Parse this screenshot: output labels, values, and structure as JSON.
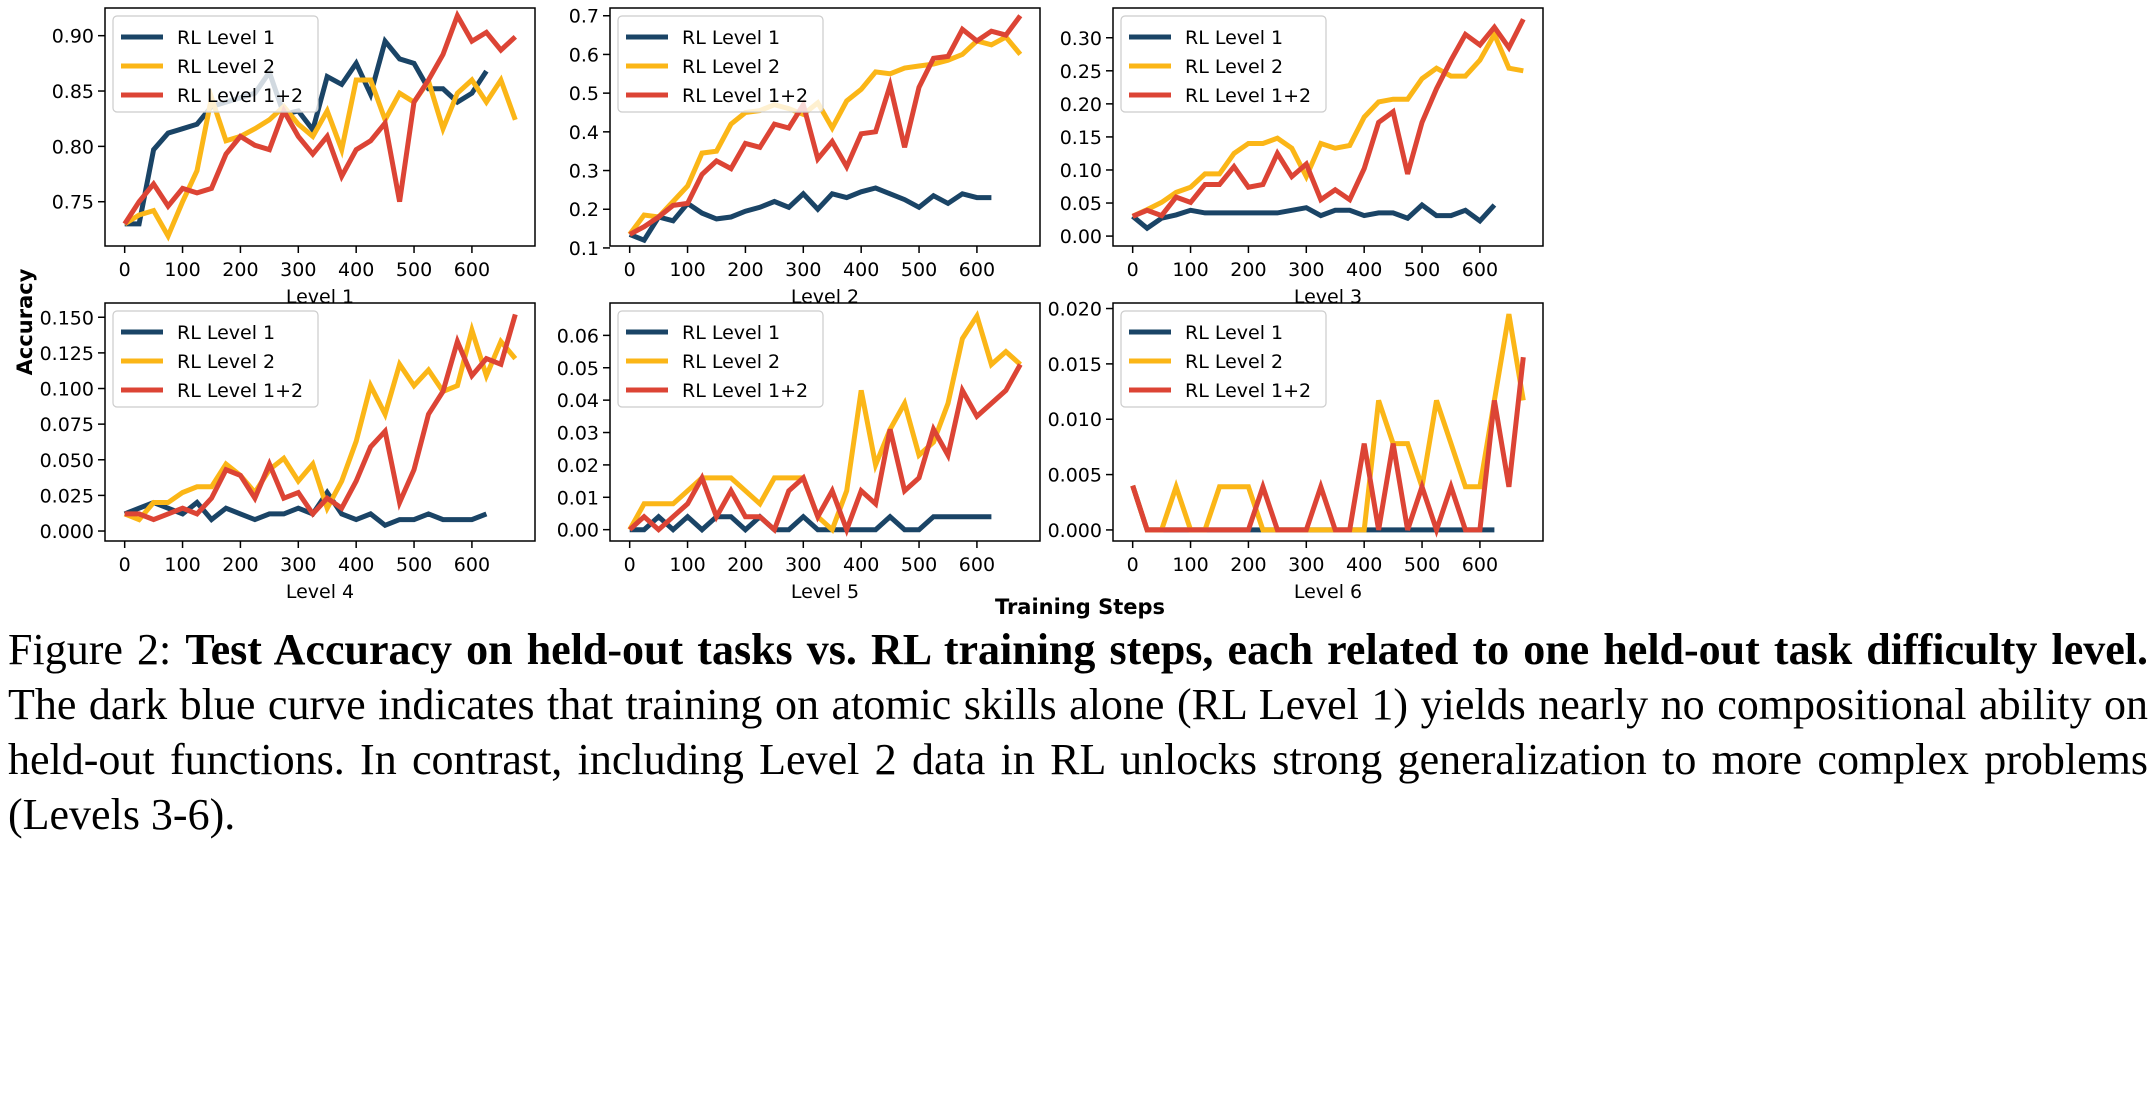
{
  "figure": {
    "ylabel": "Accuracy",
    "xlabel": "Training Steps"
  },
  "caption": {
    "label": "Figure 2: ",
    "bold": "Test Accuracy on held-out tasks vs. RL training steps, each related to one held-out task difficulty level.",
    "text": " The dark blue curve indicates that training on atomic skills alone (RL Level 1) yields nearly no compositional ability on held-out functions. In contrast, including Level 2 data in RL unlocks strong generalization to more complex problems (Levels 3-6)."
  },
  "colors": {
    "RL Level 1": "#1a4466",
    "RL Level 2": "#fbb617",
    "RL Level 1+2": "#dc4435"
  },
  "chart_data": [
    {
      "type": "line",
      "title": "",
      "xlabel": "Level 1",
      "ylabel": "Accuracy",
      "xlim": [
        -34,
        709
      ],
      "ylim": [
        0.71,
        0.925
      ],
      "xticks": [
        0,
        100,
        200,
        300,
        400,
        500,
        600
      ],
      "yticks": [
        "0.75",
        "0.80",
        "0.85",
        "0.90"
      ],
      "x_step": 25,
      "legend": "top-left",
      "series": [
        {
          "name": "RL Level 1",
          "values": [
            0.73,
            0.73,
            0.797,
            0.812,
            0.816,
            0.82,
            0.836,
            0.84,
            0.844,
            0.848,
            0.867,
            0.829,
            0.832,
            0.815,
            0.863,
            0.856,
            0.875,
            0.847,
            0.895,
            0.879,
            0.875,
            0.852,
            0.852,
            0.84,
            0.848,
            0.868
          ]
        },
        {
          "name": "RL Level 2",
          "values": [
            0.73,
            0.738,
            0.742,
            0.719,
            0.75,
            0.778,
            0.844,
            0.805,
            0.809,
            0.816,
            0.824,
            0.836,
            0.82,
            0.809,
            0.832,
            0.797,
            0.86,
            0.86,
            0.824,
            0.848,
            0.84,
            0.859,
            0.816,
            0.848,
            0.86,
            0.84,
            0.86,
            0.824
          ]
        },
        {
          "name": "RL Level 1+2",
          "values": [
            0.73,
            0.75,
            0.766,
            0.746,
            0.762,
            0.758,
            0.762,
            0.793,
            0.809,
            0.801,
            0.797,
            0.832,
            0.809,
            0.793,
            0.809,
            0.773,
            0.797,
            0.805,
            0.821,
            0.75,
            0.84,
            0.86,
            0.883,
            0.918,
            0.895,
            0.903,
            0.887,
            0.899
          ]
        }
      ]
    },
    {
      "type": "line",
      "title": "",
      "xlabel": "Level 2",
      "ylabel": "Accuracy",
      "xlim": [
        -34,
        709
      ],
      "ylim": [
        0.105,
        0.72
      ],
      "xticks": [
        0,
        100,
        200,
        300,
        400,
        500,
        600
      ],
      "yticks": [
        "0.1",
        "0.2",
        "0.3",
        "0.4",
        "0.5",
        "0.6",
        "0.7"
      ],
      "x_step": 25,
      "legend": "top-left",
      "series": [
        {
          "name": "RL Level 1",
          "values": [
            0.135,
            0.12,
            0.18,
            0.17,
            0.215,
            0.19,
            0.175,
            0.18,
            0.195,
            0.205,
            0.22,
            0.205,
            0.24,
            0.2,
            0.24,
            0.23,
            0.245,
            0.255,
            0.24,
            0.225,
            0.205,
            0.235,
            0.215,
            0.24,
            0.23,
            0.23
          ]
        },
        {
          "name": "RL Level 2",
          "values": [
            0.135,
            0.185,
            0.18,
            0.22,
            0.26,
            0.345,
            0.35,
            0.42,
            0.45,
            0.455,
            0.47,
            0.46,
            0.445,
            0.475,
            0.41,
            0.48,
            0.51,
            0.555,
            0.55,
            0.565,
            0.57,
            0.575,
            0.585,
            0.6,
            0.635,
            0.625,
            0.645,
            0.6
          ]
        },
        {
          "name": "RL Level 1+2",
          "values": [
            0.135,
            0.155,
            0.18,
            0.21,
            0.215,
            0.29,
            0.325,
            0.305,
            0.37,
            0.36,
            0.42,
            0.41,
            0.47,
            0.33,
            0.375,
            0.31,
            0.395,
            0.4,
            0.52,
            0.36,
            0.515,
            0.59,
            0.595,
            0.665,
            0.635,
            0.66,
            0.65,
            0.7
          ]
        }
      ]
    },
    {
      "type": "line",
      "title": "",
      "xlabel": "Level 3",
      "ylabel": "Accuracy",
      "xlim": [
        -34,
        709
      ],
      "ylim": [
        -0.015,
        0.345
      ],
      "xticks": [
        0,
        100,
        200,
        300,
        400,
        500,
        600
      ],
      "yticks": [
        "0.00",
        "0.05",
        "0.10",
        "0.15",
        "0.20",
        "0.25",
        "0.30"
      ],
      "x_step": 25,
      "legend": "top-left",
      "series": [
        {
          "name": "RL Level 1",
          "values": [
            0.03,
            0.012,
            0.027,
            0.032,
            0.039,
            0.035,
            0.035,
            0.035,
            0.035,
            0.035,
            0.035,
            0.039,
            0.043,
            0.031,
            0.039,
            0.039,
            0.031,
            0.035,
            0.035,
            0.027,
            0.047,
            0.031,
            0.031,
            0.039,
            0.023,
            0.047
          ]
        },
        {
          "name": "RL Level 2",
          "values": [
            0.03,
            0.04,
            0.051,
            0.066,
            0.074,
            0.094,
            0.094,
            0.125,
            0.14,
            0.14,
            0.148,
            0.133,
            0.09,
            0.14,
            0.133,
            0.137,
            0.18,
            0.203,
            0.207,
            0.207,
            0.238,
            0.254,
            0.242,
            0.242,
            0.266,
            0.305,
            0.254,
            0.25
          ]
        },
        {
          "name": "RL Level 1+2",
          "values": [
            0.03,
            0.039,
            0.031,
            0.059,
            0.051,
            0.078,
            0.078,
            0.105,
            0.074,
            0.078,
            0.125,
            0.09,
            0.109,
            0.055,
            0.07,
            0.055,
            0.102,
            0.172,
            0.188,
            0.094,
            0.172,
            0.223,
            0.266,
            0.305,
            0.289,
            0.316,
            0.285,
            0.328
          ]
        }
      ]
    },
    {
      "type": "line",
      "title": "",
      "xlabel": "Level 4",
      "ylabel": "Accuracy",
      "xlim": [
        -34,
        709
      ],
      "ylim": [
        -0.007,
        0.16
      ],
      "xticks": [
        0,
        100,
        200,
        300,
        400,
        500,
        600
      ],
      "yticks": [
        "0.000",
        "0.025",
        "0.050",
        "0.075",
        "0.100",
        "0.125",
        "0.150"
      ],
      "x_step": 25,
      "legend": "top-left",
      "series": [
        {
          "name": "RL Level 1",
          "values": [
            0.012,
            0.016,
            0.02,
            0.016,
            0.012,
            0.02,
            0.008,
            0.016,
            0.012,
            0.008,
            0.012,
            0.012,
            0.016,
            0.012,
            0.027,
            0.012,
            0.008,
            0.012,
            0.004,
            0.008,
            0.008,
            0.012,
            0.008,
            0.008,
            0.008,
            0.012
          ]
        },
        {
          "name": "RL Level 2",
          "values": [
            0.012,
            0.008,
            0.02,
            0.02,
            0.027,
            0.031,
            0.031,
            0.047,
            0.039,
            0.027,
            0.043,
            0.051,
            0.035,
            0.047,
            0.016,
            0.035,
            0.063,
            0.102,
            0.082,
            0.117,
            0.102,
            0.113,
            0.098,
            0.102,
            0.141,
            0.109,
            0.133,
            0.121
          ]
        },
        {
          "name": "RL Level 1+2",
          "values": [
            0.012,
            0.012,
            0.008,
            0.012,
            0.016,
            0.012,
            0.023,
            0.043,
            0.039,
            0.023,
            0.047,
            0.023,
            0.027,
            0.012,
            0.023,
            0.016,
            0.035,
            0.059,
            0.07,
            0.02,
            0.043,
            0.082,
            0.098,
            0.133,
            0.109,
            0.121,
            0.117,
            0.152
          ]
        }
      ]
    },
    {
      "type": "line",
      "title": "",
      "xlabel": "Level 5",
      "ylabel": "Accuracy",
      "xlim": [
        -34,
        709
      ],
      "ylim": [
        -0.0035,
        0.07
      ],
      "xticks": [
        0,
        100,
        200,
        300,
        400,
        500,
        600
      ],
      "yticks": [
        "0.00",
        "0.01",
        "0.02",
        "0.03",
        "0.04",
        "0.05",
        "0.06"
      ],
      "x_step": 25,
      "legend": "top-left",
      "series": [
        {
          "name": "RL Level 1",
          "values": [
            0,
            0,
            0.004,
            0,
            0.004,
            0,
            0.004,
            0.004,
            0,
            0.004,
            0,
            0,
            0.004,
            0,
            0,
            0,
            0,
            0,
            0.004,
            0,
            0,
            0.004,
            0.004,
            0.004,
            0.004,
            0.004
          ]
        },
        {
          "name": "RL Level 2",
          "values": [
            0,
            0.008,
            0.008,
            0.008,
            0.012,
            0.016,
            0.016,
            0.016,
            0.012,
            0.008,
            0.016,
            0.016,
            0.016,
            0.004,
            0,
            0.012,
            0.043,
            0.02,
            0.031,
            0.039,
            0.023,
            0.027,
            0.039,
            0.059,
            0.066,
            0.051,
            0.055,
            0.051
          ]
        },
        {
          "name": "RL Level 1+2",
          "values": [
            0,
            0.004,
            0,
            0.004,
            0.008,
            0.016,
            0.004,
            0.012,
            0.004,
            0.004,
            0,
            0.012,
            0.016,
            0.004,
            0.012,
            0,
            0.012,
            0.008,
            0.031,
            0.012,
            0.016,
            0.031,
            0.023,
            0.043,
            0.035,
            0.039,
            0.043,
            0.051
          ]
        }
      ]
    },
    {
      "type": "line",
      "title": "",
      "xlabel": "Level 6",
      "ylabel": "Accuracy",
      "xlim": [
        -34,
        709
      ],
      "ylim": [
        -0.001,
        0.0205
      ],
      "xticks": [
        0,
        100,
        200,
        300,
        400,
        500,
        600
      ],
      "yticks": [
        "0.000",
        "0.005",
        "0.010",
        "0.015",
        "0.020"
      ],
      "x_step": 25,
      "legend": "top-left",
      "series": [
        {
          "name": "RL Level 1",
          "values": [
            0.004,
            0,
            0,
            0,
            0,
            0,
            0,
            0,
            0,
            0,
            0,
            0,
            0,
            0,
            0,
            0,
            0,
            0,
            0,
            0,
            0,
            0,
            0,
            0,
            0,
            0
          ]
        },
        {
          "name": "RL Level 2",
          "values": [
            0.004,
            0,
            0,
            0.0039,
            0,
            0,
            0.0039,
            0.0039,
            0.0039,
            0,
            0,
            0,
            0,
            0,
            0,
            0,
            0,
            0.0117,
            0.0078,
            0.0078,
            0.0039,
            0.0117,
            0.0078,
            0.0039,
            0.0039,
            0.0117,
            0.0195,
            0.0117
          ]
        },
        {
          "name": "RL Level 1+2",
          "values": [
            0.004,
            0,
            0,
            0,
            0,
            0,
            0,
            0,
            0,
            0.0039,
            0,
            0,
            0,
            0.0039,
            0,
            0,
            0.0078,
            0,
            0.0078,
            0,
            0.0039,
            0,
            0.0039,
            0,
            0,
            0.0117,
            0.0039,
            0.0156
          ]
        }
      ]
    }
  ]
}
